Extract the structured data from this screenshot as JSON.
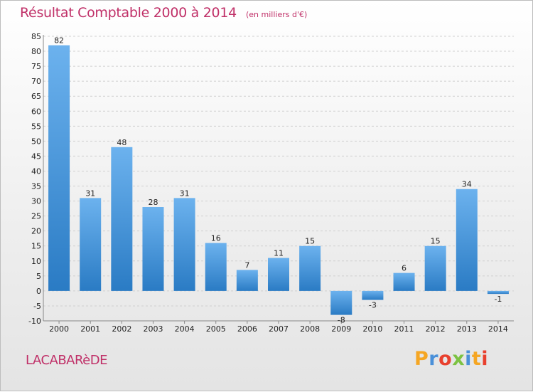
{
  "header": {
    "title": "Résultat Comptable 2000 à 2014",
    "subtitle": "(en milliers d'€)"
  },
  "footer": {
    "commune": "LACABARèDE",
    "brand": "Proxiti",
    "brand_colors": [
      "#f5a623",
      "#4a90d9",
      "#e8402e",
      "#7cc242",
      "#4a90d9",
      "#f5a623",
      "#e8402e"
    ]
  },
  "colors": {
    "bar_light": "#6cb2ee",
    "bar_dark": "#2a7bc4",
    "grid": "#d0d0d0",
    "title": "#c03068"
  },
  "chart_data": {
    "type": "bar",
    "categories": [
      "2000",
      "2001",
      "2002",
      "2003",
      "2004",
      "2005",
      "2006",
      "2007",
      "2008",
      "2009",
      "2010",
      "2011",
      "2012",
      "2013",
      "2014"
    ],
    "values": [
      82,
      31,
      48,
      28,
      31,
      16,
      7,
      11,
      15,
      -8,
      -3,
      6,
      15,
      34,
      -1
    ],
    "data_labels": [
      "82",
      "31",
      "48",
      "28",
      "31",
      "16",
      "7",
      "11",
      "15",
      "-8",
      "-3",
      "6",
      "15",
      "34",
      "-1"
    ],
    "y_ticks": [
      -10,
      -5,
      0,
      5,
      10,
      15,
      20,
      25,
      30,
      35,
      40,
      45,
      50,
      55,
      60,
      65,
      70,
      75,
      80,
      85
    ],
    "ylim": [
      -10,
      85
    ],
    "grid": "horizontal dashed",
    "legend": "none"
  }
}
